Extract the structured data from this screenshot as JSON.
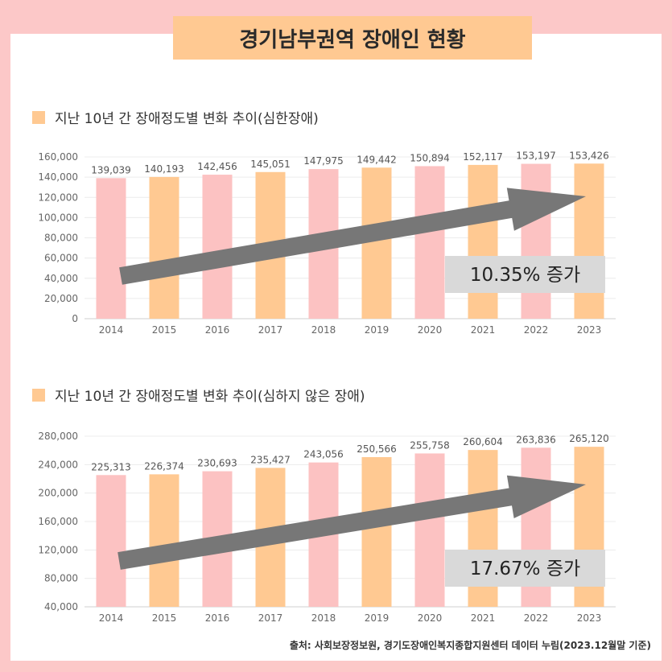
{
  "title": "경기남부권역 장애인 현황",
  "source": "출처: 사회보장정보원, 경기도장애인복지종합지원센터 데이터 누림(2023.12월말 기준)",
  "colors": {
    "background": "#fcc8c8",
    "pink": "#fcc2c2",
    "orange": "#ffc992",
    "arrow": "#777777",
    "label_box": "#d9d9d9"
  },
  "chart_data": [
    {
      "type": "bar",
      "title": "지난 10년 간 장애정도별 변화 추이(심한장애)",
      "categories": [
        "2014",
        "2015",
        "2016",
        "2017",
        "2018",
        "2019",
        "2020",
        "2021",
        "2022",
        "2023"
      ],
      "values": [
        139039,
        140193,
        142456,
        145051,
        147975,
        149442,
        150894,
        152117,
        153197,
        153426
      ],
      "value_labels": [
        "139,039",
        "140,193",
        "142,456",
        "145,051",
        "147,975",
        "149,442",
        "150,894",
        "152,117",
        "153,197",
        "153,426"
      ],
      "y_ticks": [
        "0",
        "20,000",
        "40,000",
        "60,000",
        "80,000",
        "100,000",
        "120,000",
        "140,000",
        "160,000"
      ],
      "ylim": [
        0,
        160000
      ],
      "annotation": "10.35% 증가",
      "grid": true
    },
    {
      "type": "bar",
      "title": "지난 10년 간 장애정도별 변화 추이(심하지 않은 장애)",
      "categories": [
        "2014",
        "2015",
        "2016",
        "2017",
        "2018",
        "2019",
        "2020",
        "2021",
        "2022",
        "2023"
      ],
      "values": [
        225313,
        226374,
        230693,
        235427,
        243056,
        250566,
        255758,
        260604,
        263836,
        265120
      ],
      "value_labels": [
        "225,313",
        "226,374",
        "230,693",
        "235,427",
        "243,056",
        "250,566",
        "255,758",
        "260,604",
        "263,836",
        "265,120"
      ],
      "y_ticks": [
        "40,000",
        "80,000",
        "120,000",
        "160,000",
        "200,000",
        "240,000",
        "280,000"
      ],
      "ylim": [
        40000,
        280000
      ],
      "annotation": "17.67% 증가",
      "grid": true
    }
  ]
}
